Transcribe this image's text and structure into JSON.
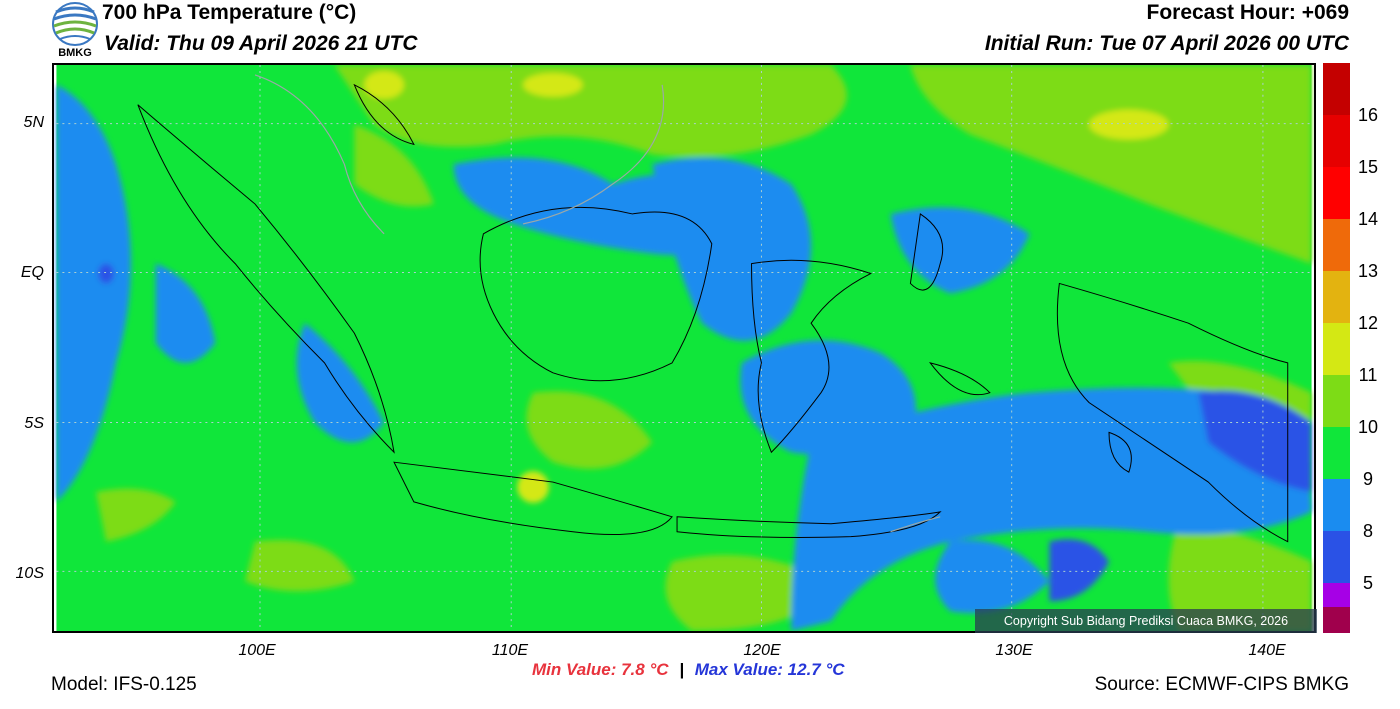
{
  "header": {
    "title": "700 hPa Temperature (°C)",
    "valid": "Valid: Thu 09 April 2026 21 UTC",
    "forecast_hour": "Forecast Hour: +069",
    "initial_run": "Initial Run: Tue 07 April 2026 00 UTC",
    "logo_text": "BMKG"
  },
  "map": {
    "lat_ticks": [
      "5N",
      "EQ",
      "5S",
      "10S"
    ],
    "lon_ticks": [
      "100E",
      "110E",
      "120E",
      "130E",
      "140E"
    ],
    "copyright": "Copyright Sub Bidang Prediksi Cuaca BMKG, 2026",
    "colors": {
      "base_green": "#10e63a",
      "light_green": "#7ddc16",
      "blue": "#1a8cf0",
      "dark_blue": "#2a52e6",
      "yellow": "#d4e814"
    }
  },
  "colorbar": {
    "labels": [
      "16",
      "15",
      "14",
      "13",
      "12",
      "11",
      "10",
      "9",
      "8",
      "5"
    ],
    "colors": [
      "#c40000",
      "#ff0000",
      "#ff2020",
      "#ef6a0a",
      "#e3b310",
      "#d4e814",
      "#7ddc16",
      "#10e63a",
      "#1a8cf0",
      "#2a52e6",
      "#a600e6",
      "#a0004c"
    ]
  },
  "footer": {
    "model": "Model: IFS-0.125",
    "min_value": "Min Value: 7.8 °C",
    "separator": "|",
    "max_value": "Max Value: 12.7 °C",
    "source": "Source: ECMWF-CIPS BMKG"
  }
}
